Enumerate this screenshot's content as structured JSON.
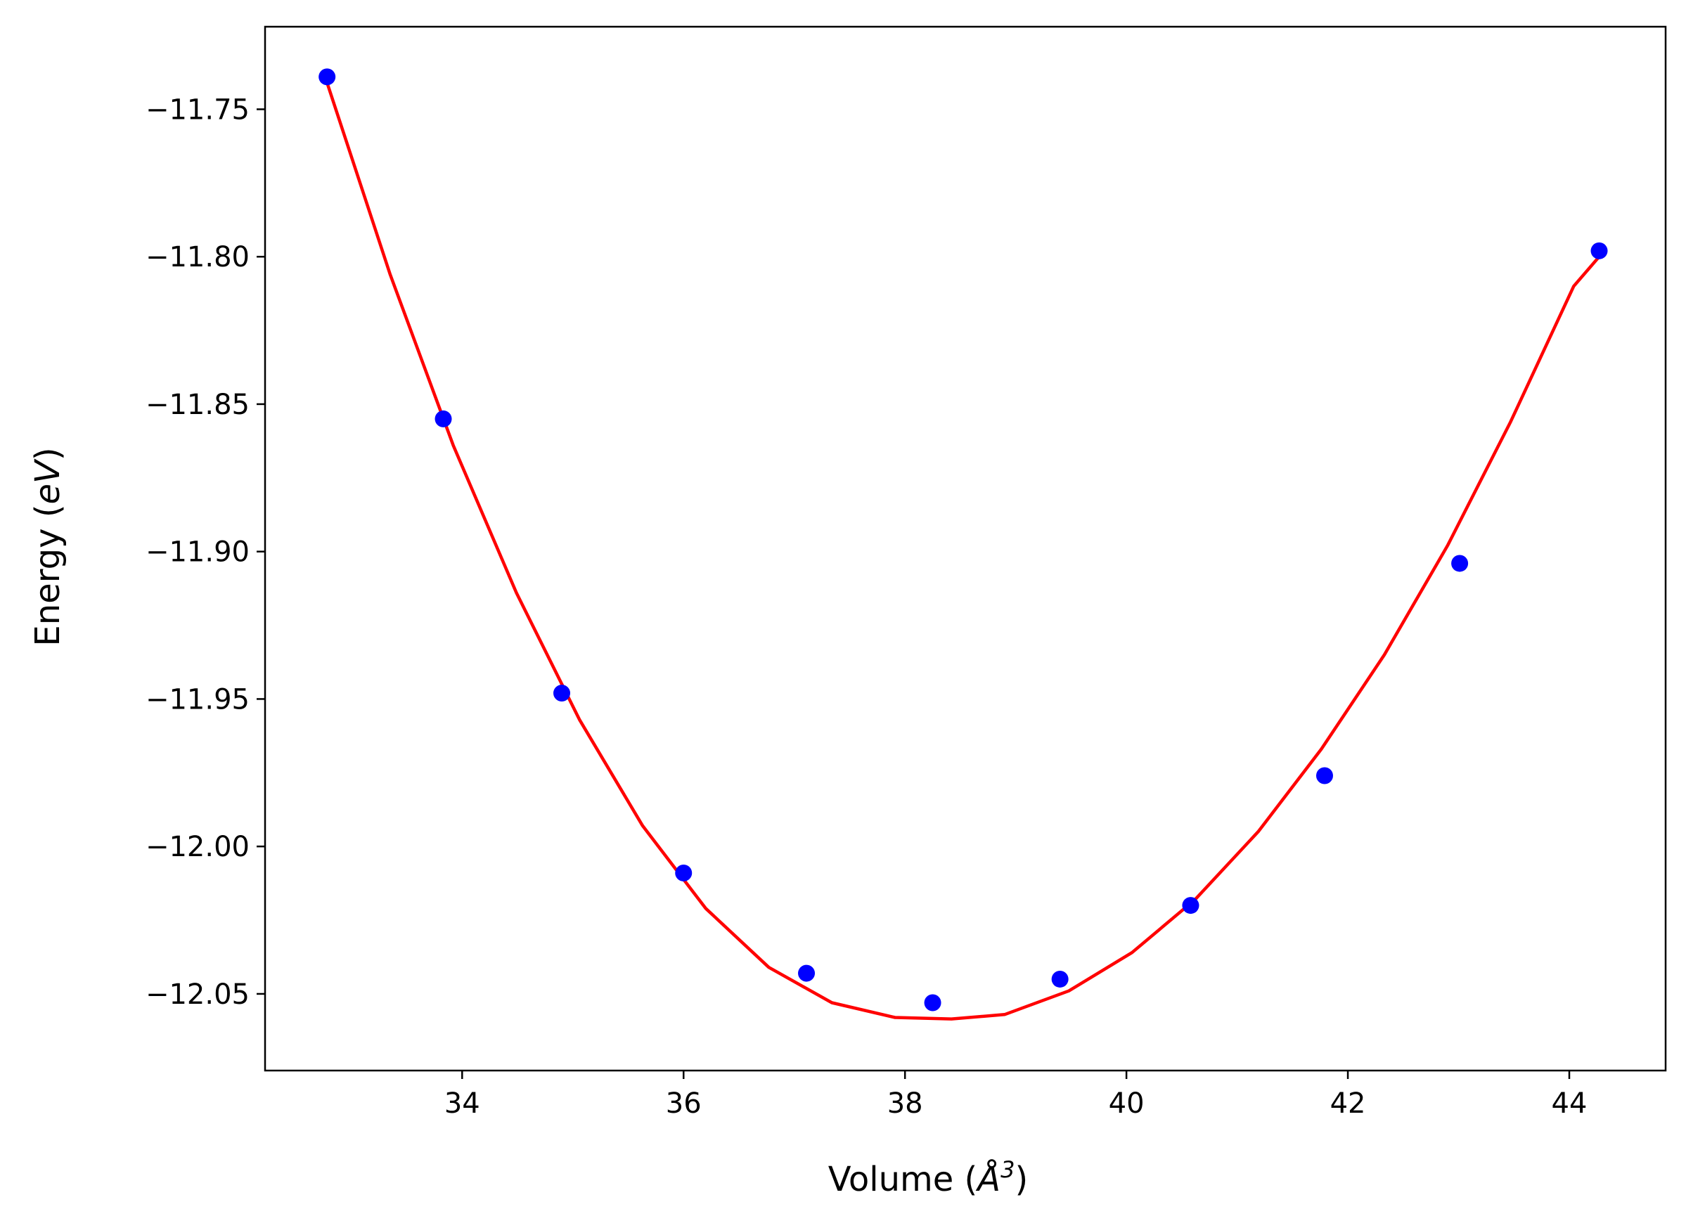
{
  "chart_data": {
    "type": "scatter",
    "title": "",
    "xlabel": {
      "prefix": "Volume (",
      "symbol": "Å",
      "sup": "3",
      "suffix": ")"
    },
    "ylabel": {
      "prefix": "Energy (",
      "unit": "eV",
      "suffix": ")"
    },
    "xlim": [
      32.22,
      44.87
    ],
    "ylim": [
      -12.076,
      -11.722
    ],
    "xticks": [
      34,
      36,
      38,
      40,
      42,
      44
    ],
    "xtick_labels": [
      "34",
      "36",
      "38",
      "40",
      "42",
      "44"
    ],
    "yticks": [
      -11.75,
      -11.8,
      -11.85,
      -11.9,
      -11.95,
      -12.0,
      -12.05
    ],
    "ytick_labels": [
      "−11.75",
      "−11.80",
      "−11.85",
      "−11.90",
      "−11.95",
      "−12.00",
      "−12.05"
    ],
    "grid": false,
    "series": [
      {
        "kind": "points",
        "color": "#0000ff",
        "x": [
          32.78,
          33.83,
          34.9,
          36.0,
          37.11,
          38.25,
          39.4,
          40.58,
          41.79,
          43.01,
          44.27
        ],
        "y": [
          -11.739,
          -11.855,
          -11.948,
          -12.009,
          -12.043,
          -12.053,
          -12.045,
          -12.02,
          -11.976,
          -11.904,
          -11.798
        ]
      },
      {
        "kind": "fit-line",
        "color": "#ff0000",
        "x": [
          32.78,
          33.35,
          33.92,
          34.49,
          35.06,
          35.63,
          36.2,
          36.77,
          37.34,
          37.91,
          38.42,
          38.9,
          39.48,
          40.05,
          40.62,
          41.19,
          41.76,
          42.33,
          42.9,
          43.47,
          44.04,
          44.27
        ],
        "y": [
          -11.741,
          -11.806,
          -11.864,
          -11.914,
          -11.957,
          -11.993,
          -12.021,
          -12.041,
          -12.053,
          -12.058,
          -12.0585,
          -12.057,
          -12.049,
          -12.036,
          -12.018,
          -11.995,
          -11.967,
          -11.935,
          -11.898,
          -11.856,
          -11.81,
          -11.8
        ]
      }
    ]
  }
}
